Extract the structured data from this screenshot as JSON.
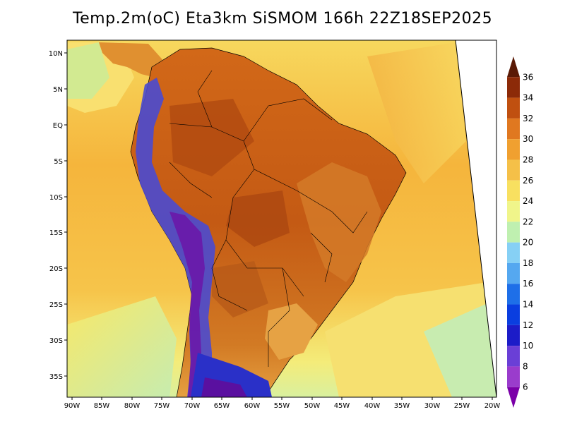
{
  "title": "Temp.2m(oC) Eta3km SiSMOM 166h 22Z18SEP2025",
  "lat_labels": [
    "10N",
    "5N",
    "EQ",
    "5S",
    "10S",
    "15S",
    "20S",
    "25S",
    "30S",
    "35S"
  ],
  "lon_labels": [
    "90W",
    "85W",
    "80W",
    "75W",
    "70W",
    "65W",
    "60W",
    "55W",
    "50W",
    "45W",
    "40W",
    "35W",
    "30W",
    "25W",
    "20W"
  ],
  "colorbar": {
    "labels": [
      "6",
      "8",
      "10",
      "12",
      "14",
      "16",
      "18",
      "20",
      "22",
      "24",
      "26",
      "28",
      "30",
      "32",
      "34",
      "36"
    ],
    "colors": [
      "#7b00a8",
      "#9a3ccc",
      "#6a3fd6",
      "#1c1cc8",
      "#0a3ee0",
      "#1e6fe8",
      "#55a8f0",
      "#86d0f5",
      "#bff0b0",
      "#f0f58a",
      "#f8e060",
      "#f5c048",
      "#f0a030",
      "#e07820",
      "#c05010",
      "#8c2a08",
      "#5a1a06"
    ]
  },
  "map_colors": {
    "ocean_north": "#f7d25a",
    "ocean_main": "#f5b43a",
    "ocean_south": "#f3f07a",
    "ocean_cool": "#bfeaa0",
    "land_hot": "#d4681a",
    "land_very_hot": "#b84d12",
    "andes_cold": "#4a3cc8",
    "andes_coldest": "#6a10a0"
  }
}
